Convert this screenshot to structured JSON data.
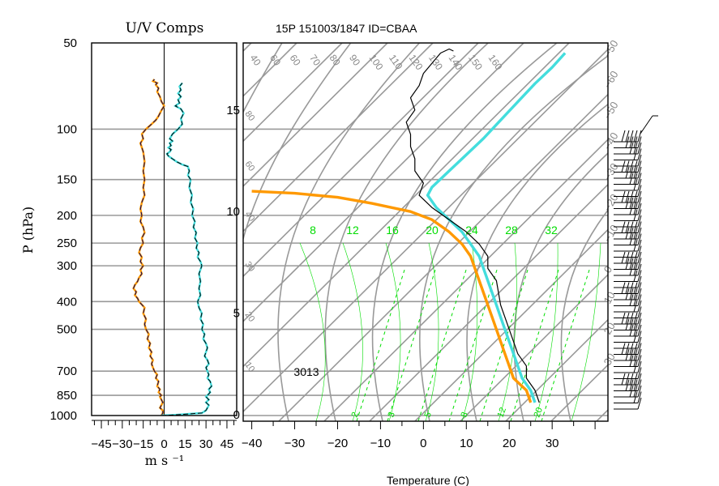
{
  "title": "15P 151003/1847 ID=CBAA",
  "colors": {
    "frame": "#000000",
    "grid": "#999999",
    "isotherm_labels": "#888888",
    "mixing_ratio": "#00dd00",
    "temperature": "#000000",
    "dewpoint": "#ff9900",
    "parcel": "#44dddd",
    "u_wind": "#ff9900",
    "v_wind": "#44dddd",
    "u_wind_overlay": "#000066",
    "v_wind_overlay": "#000000"
  },
  "chart_data": [
    {
      "type": "line",
      "title": "U/V Comps",
      "xlabel": "m s ⁻¹",
      "ylabel": "P (hPa)",
      "xlim": [
        -52,
        52
      ],
      "ylim": [
        1000,
        50
      ],
      "y_scale": "log",
      "xticks": [
        "−45",
        "−30",
        "−15",
        "0",
        "15",
        "30",
        "45"
      ],
      "yticks": [
        "50",
        "100",
        "150",
        "200",
        "250",
        "300",
        "400",
        "500",
        "700",
        "850",
        "1000"
      ],
      "series": [
        {
          "color_key": "u_wind",
          "style": "solid",
          "points": [
            [
              -2,
              1000
            ],
            [
              -1,
              980
            ],
            [
              -1,
              960
            ],
            [
              -3,
              940
            ],
            [
              -2,
              920
            ],
            [
              -1,
              900
            ],
            [
              -2,
              880
            ],
            [
              -3,
              860
            ],
            [
              -2,
              850
            ],
            [
              -4,
              830
            ],
            [
              -3,
              810
            ],
            [
              -5,
              790
            ],
            [
              -4,
              760
            ],
            [
              -6,
              740
            ],
            [
              -5,
              720
            ],
            [
              -7,
              700
            ],
            [
              -8,
              680
            ],
            [
              -9,
              660
            ],
            [
              -8,
              640
            ],
            [
              -10,
              620
            ],
            [
              -9,
              600
            ],
            [
              -11,
              580
            ],
            [
              -10,
              560
            ],
            [
              -12,
              540
            ],
            [
              -11,
              520
            ],
            [
              -13,
              500
            ],
            [
              -14,
              480
            ],
            [
              -13,
              460
            ],
            [
              -15,
              440
            ],
            [
              -14,
              420
            ],
            [
              -16,
              410
            ],
            [
              -18,
              400
            ],
            [
              -19,
              390
            ],
            [
              -21,
              380
            ],
            [
              -20,
              370
            ],
            [
              -22,
              360
            ],
            [
              -21,
              350
            ],
            [
              -19,
              340
            ],
            [
              -18,
              330
            ],
            [
              -16,
              320
            ],
            [
              -17,
              310
            ],
            [
              -15,
              300
            ],
            [
              -17,
              290
            ],
            [
              -16,
              280
            ],
            [
              -18,
              270
            ],
            [
              -17,
              260
            ],
            [
              -15,
              250
            ],
            [
              -16,
              240
            ],
            [
              -14,
              230
            ],
            [
              -15,
              220
            ],
            [
              -17,
              210
            ],
            [
              -16,
              200
            ],
            [
              -17,
              190
            ],
            [
              -16,
              180
            ],
            [
              -14,
              170
            ],
            [
              -15,
              160
            ],
            [
              -14,
              150
            ],
            [
              -15,
              140
            ],
            [
              -14,
              130
            ],
            [
              -15,
              120
            ],
            [
              -17,
              112
            ],
            [
              -15,
              108
            ],
            [
              -16,
              104
            ],
            [
              -13,
              100
            ],
            [
              -11,
              98
            ],
            [
              -9,
              96
            ],
            [
              -6,
              93
            ],
            [
              -4,
              90
            ],
            [
              -2,
              86
            ],
            [
              0,
              83
            ],
            [
              -2,
              80
            ],
            [
              -3,
              77
            ],
            [
              -5,
              74
            ],
            [
              -4,
              72
            ],
            [
              -6,
              70
            ],
            [
              -5,
              69
            ],
            [
              -8,
              68
            ],
            [
              -7,
              67
            ]
          ]
        },
        {
          "color_key": "v_wind",
          "style": "solid",
          "points": [
            [
              -2,
              1000
            ],
            [
              8,
              995
            ],
            [
              14,
              990
            ],
            [
              20,
              985
            ],
            [
              27,
              980
            ],
            [
              30,
              960
            ],
            [
              31,
              940
            ],
            [
              32,
              920
            ],
            [
              30,
              900
            ],
            [
              32,
              880
            ],
            [
              30,
              860
            ],
            [
              31,
              850
            ],
            [
              33,
              830
            ],
            [
              32,
              810
            ],
            [
              34,
              790
            ],
            [
              33,
              760
            ],
            [
              31,
              740
            ],
            [
              32,
              720
            ],
            [
              31,
              700
            ],
            [
              30,
              680
            ],
            [
              32,
              660
            ],
            [
              31,
              640
            ],
            [
              29,
              620
            ],
            [
              30,
              600
            ],
            [
              31,
              580
            ],
            [
              30,
              560
            ],
            [
              28,
              540
            ],
            [
              29,
              520
            ],
            [
              27,
              500
            ],
            [
              28,
              480
            ],
            [
              26,
              460
            ],
            [
              27,
              440
            ],
            [
              25,
              420
            ],
            [
              24,
              400
            ],
            [
              26,
              380
            ],
            [
              25,
              360
            ],
            [
              26,
              340
            ],
            [
              25,
              320
            ],
            [
              27,
              300
            ],
            [
              26,
              290
            ],
            [
              24,
              280
            ],
            [
              25,
              270
            ],
            [
              23,
              260
            ],
            [
              24,
              250
            ],
            [
              22,
              240
            ],
            [
              23,
              230
            ],
            [
              21,
              220
            ],
            [
              22,
              210
            ],
            [
              20,
              200
            ],
            [
              21,
              190
            ],
            [
              19,
              180
            ],
            [
              20,
              170
            ],
            [
              18,
              160
            ],
            [
              19,
              150
            ],
            [
              17,
              145
            ],
            [
              18,
              140
            ],
            [
              17,
              135
            ],
            [
              13,
              133
            ],
            [
              9,
              130
            ],
            [
              6,
              127
            ],
            [
              3,
              124
            ],
            [
              2,
              122
            ],
            [
              4,
              120
            ],
            [
              5,
              118
            ],
            [
              3,
              116
            ],
            [
              5,
              114
            ],
            [
              4,
              112
            ],
            [
              6,
              110
            ],
            [
              4,
              108
            ],
            [
              6,
              104
            ],
            [
              10,
              100
            ],
            [
              13,
              96
            ],
            [
              12,
              92
            ],
            [
              14,
              88
            ],
            [
              12,
              85
            ],
            [
              8,
              83
            ],
            [
              11,
              81
            ],
            [
              10,
              79
            ],
            [
              12,
              77
            ],
            [
              10,
              75
            ],
            [
              12,
              73
            ],
            [
              11,
              71
            ],
            [
              13,
              69
            ]
          ]
        }
      ]
    },
    {
      "type": "line",
      "title": "15P 151003/1847 ID=CBAA",
      "xlabel": "Temperature (C)",
      "ylabel": "",
      "xlim": [
        -42,
        43
      ],
      "ylim": [
        0,
        18.3
      ],
      "height_axis_ticks": [
        "0",
        "5",
        "10",
        "15"
      ],
      "xticks": [
        "−40",
        "−30",
        "−20",
        "−10",
        "0",
        "10",
        "20",
        "30"
      ],
      "annotation": "3013",
      "isotherm_labels": [
        "40",
        "60",
        "60",
        "70",
        "80",
        "90",
        "100",
        "110",
        "120",
        "130",
        "140",
        "150",
        "160"
      ],
      "isotherm_side_labels": [
        "−50",
        "−60",
        "−50",
        "−40",
        "−30",
        "−20",
        "−10",
        "0",
        "10",
        "20",
        "30"
      ],
      "left_edge_labels": [
        "80",
        "60",
        "40",
        "30",
        "20",
        "10"
      ],
      "mixing_ratio_labels_top": [
        "8",
        "12",
        "16",
        "20",
        "24",
        "28",
        "32"
      ],
      "mixing_ratio_labels_bottom": [
        "2",
        "3",
        "5",
        "8",
        "12",
        "20"
      ],
      "series": [
        {
          "name": "",
          "color_key": "temperature",
          "style": "solid",
          "points": [
            [
              27,
              0.6
            ],
            [
              26,
              1.2
            ],
            [
              24,
              1.8
            ],
            [
              24,
              2.4
            ],
            [
              22,
              3
            ],
            [
              21,
              3.6
            ],
            [
              20,
              4.2
            ],
            [
              19,
              4.8
            ],
            [
              18,
              5.4
            ],
            [
              17.5,
              6
            ],
            [
              17,
              6.6
            ],
            [
              15,
              7.2
            ],
            [
              15,
              7.8
            ],
            [
              13,
              8.4
            ],
            [
              10,
              9
            ],
            [
              6,
              9.6
            ],
            [
              2,
              10.2
            ],
            [
              -1,
              10.8
            ],
            [
              0,
              11.4
            ],
            [
              -2,
              12
            ],
            [
              -2,
              12.6
            ],
            [
              -3,
              13.2
            ],
            [
              -3,
              13.8
            ],
            [
              -4,
              14.4
            ],
            [
              -2,
              15
            ],
            [
              -3,
              15.6
            ],
            [
              -1,
              16.2
            ],
            [
              0,
              16.8
            ],
            [
              2,
              17.3
            ],
            [
              4,
              17.8
            ],
            [
              6,
              18
            ],
            [
              7,
              17.9
            ]
          ]
        },
        {
          "name": "",
          "color_key": "dewpoint",
          "style": "solid",
          "points": [
            [
              25,
              0.6
            ],
            [
              24,
              1.2
            ],
            [
              21,
              1.8
            ],
            [
              20,
              2.4
            ],
            [
              19,
              3
            ],
            [
              18,
              3.6
            ],
            [
              17,
              4.2
            ],
            [
              16,
              4.8
            ],
            [
              15,
              5.4
            ],
            [
              14,
              6
            ],
            [
              13,
              6.6
            ],
            [
              12,
              7.2
            ],
            [
              11,
              7.8
            ],
            [
              9,
              8.4
            ],
            [
              6,
              9
            ],
            [
              2,
              9.6
            ],
            [
              -3,
              10
            ],
            [
              -12,
              10.4
            ],
            [
              -20,
              10.7
            ],
            [
              -30,
              10.9
            ],
            [
              -40,
              11
            ]
          ]
        },
        {
          "name": "",
          "color_key": "parcel",
          "style": "solid",
          "points": [
            [
              26,
              0.6
            ],
            [
              25,
              1.2
            ],
            [
              23,
              1.8
            ],
            [
              22,
              2.4
            ],
            [
              21,
              3
            ],
            [
              20,
              3.6
            ],
            [
              19,
              4.2
            ],
            [
              18,
              4.8
            ],
            [
              17,
              5.4
            ],
            [
              16,
              6
            ],
            [
              15,
              6.6
            ],
            [
              14,
              7.2
            ],
            [
              13,
              7.8
            ],
            [
              11,
              8.4
            ],
            [
              9,
              9
            ],
            [
              6,
              9.6
            ],
            [
              3,
              10.2
            ],
            [
              1,
              10.8
            ],
            [
              2,
              11.2
            ],
            [
              6,
              12
            ],
            [
              10,
              12.8
            ],
            [
              14,
              13.6
            ],
            [
              18,
              14.5
            ],
            [
              22,
              15.4
            ],
            [
              26,
              16.3
            ],
            [
              30,
              17.1
            ],
            [
              33,
              17.8
            ]
          ]
        }
      ],
      "wind_barbs": {
        "count": 45,
        "speed_range_kt": [
          5,
          50
        ],
        "direction": "westerly"
      }
    }
  ]
}
